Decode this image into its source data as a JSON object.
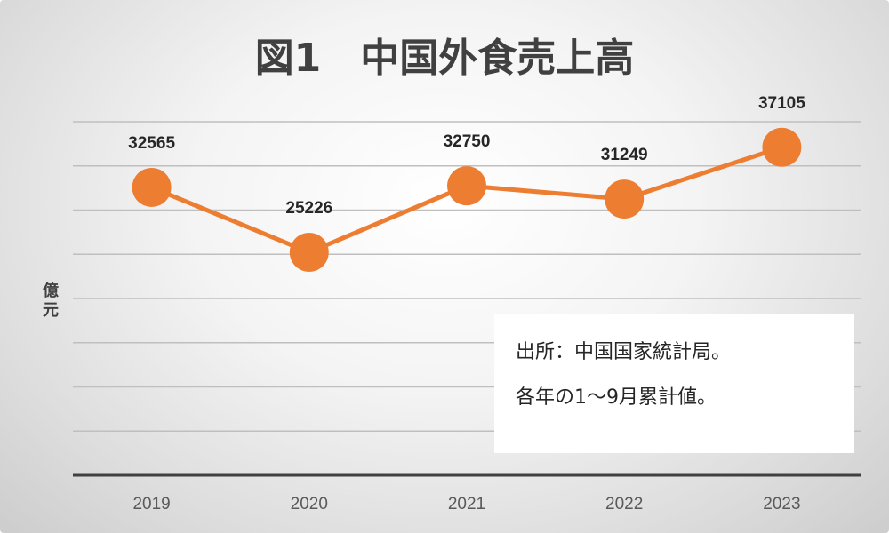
{
  "chart_data": {
    "type": "line",
    "title": "図1　中国外食売上高",
    "ylabel": "億元",
    "categories": [
      "2019",
      "2020",
      "2021",
      "2022",
      "2023"
    ],
    "series": [
      {
        "values": [
          32565,
          25226,
          32750,
          31249,
          37105
        ]
      }
    ],
    "ylim": [
      0,
      40000
    ],
    "grid": true,
    "line_color": "#ED7D31",
    "grid_color": "#BFBFBF",
    "axis_color": "#404040"
  },
  "note": {
    "line1": "出所：中国国家統計局。",
    "line2": "各年の1〜9月累計値。"
  }
}
